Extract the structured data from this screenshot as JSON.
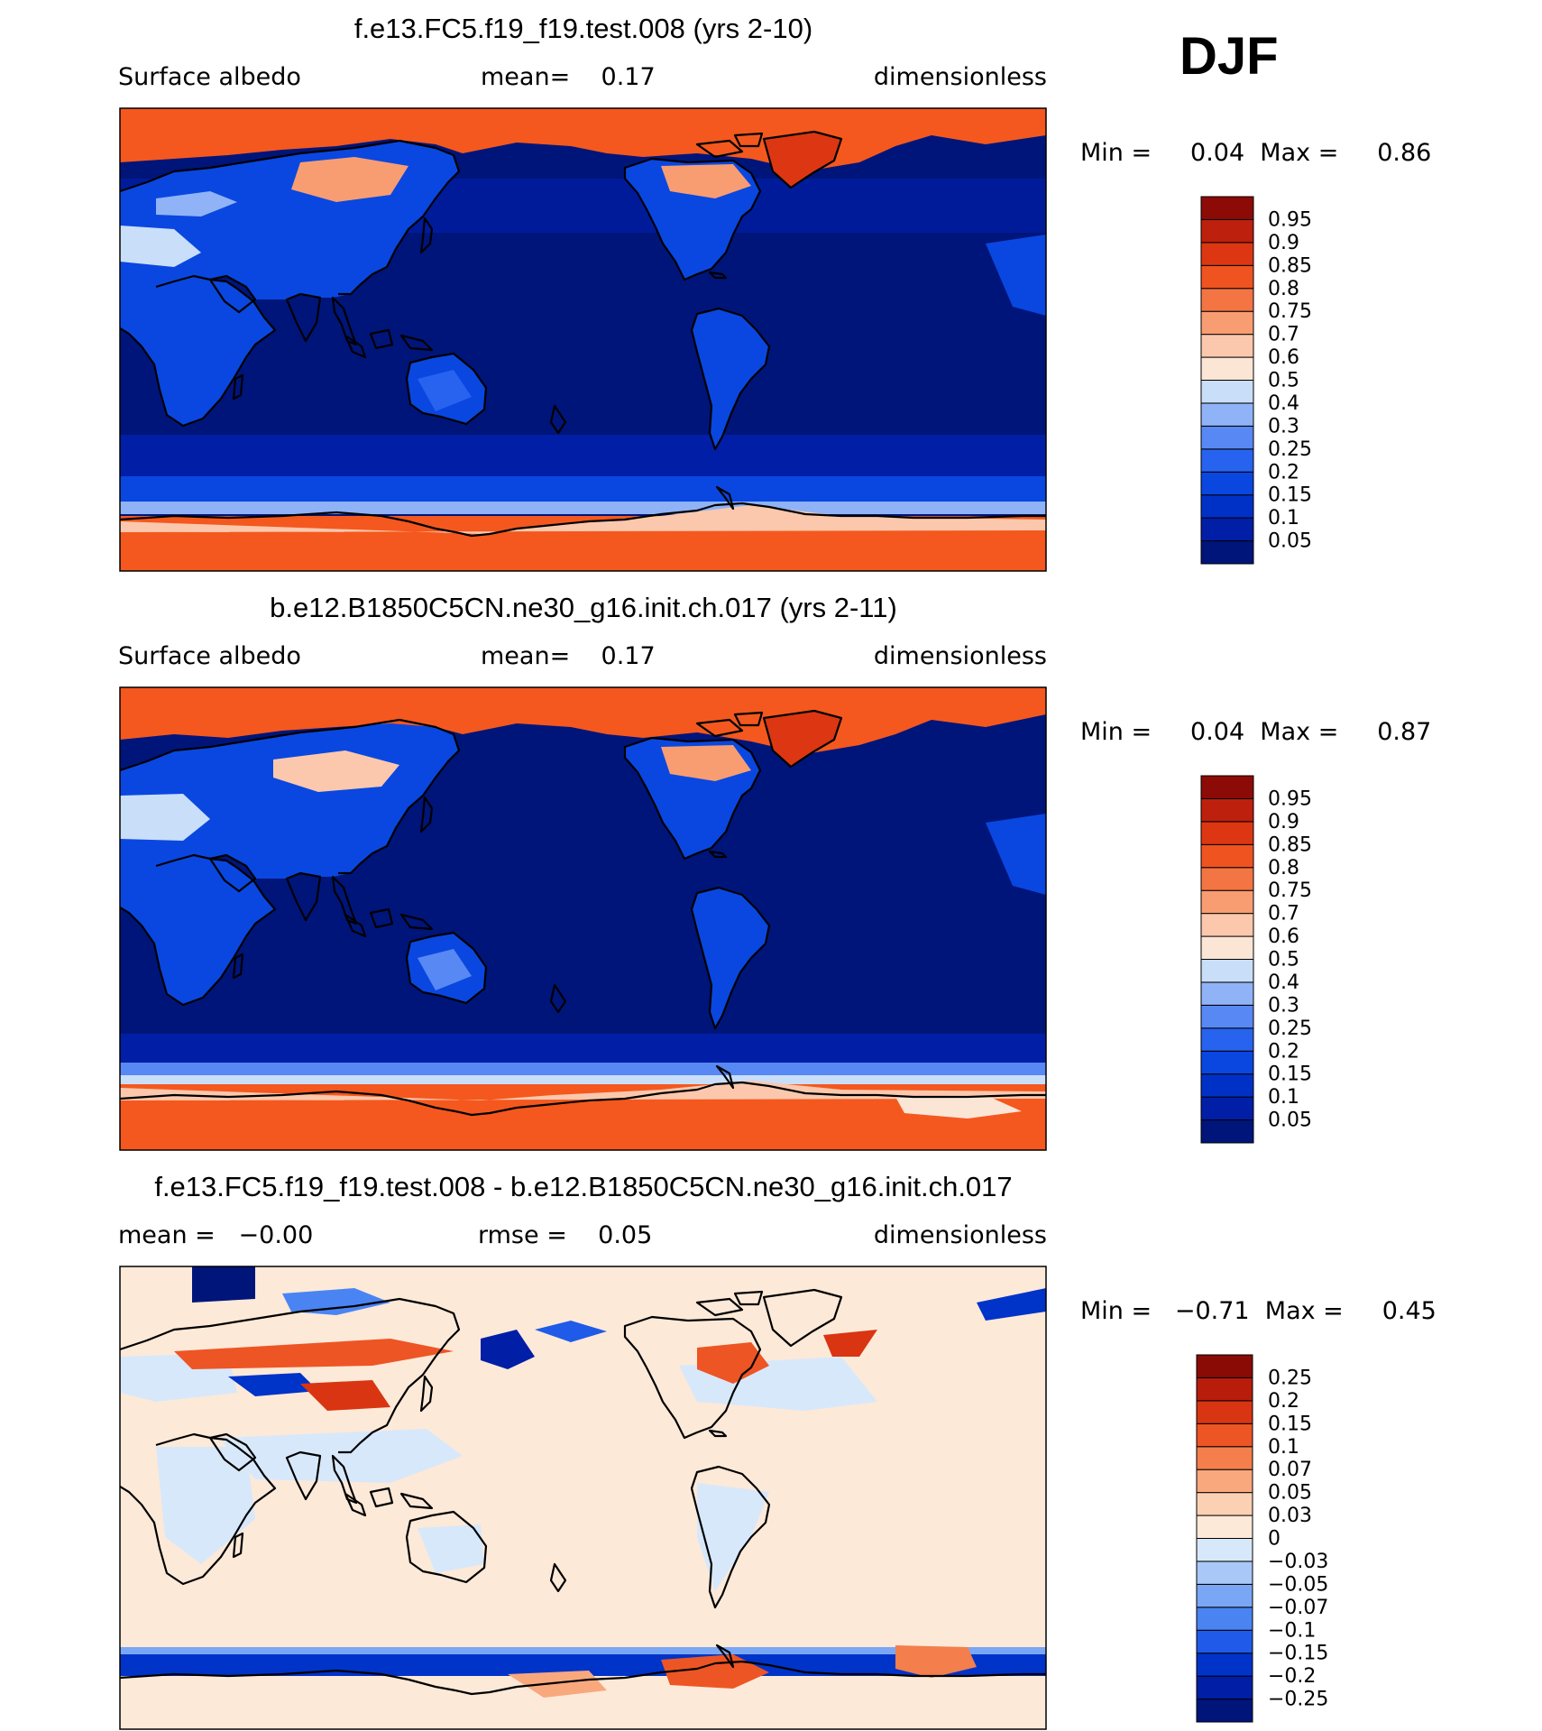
{
  "season": "DJF",
  "colors": {
    "abs_scale": [
      "#00157a",
      "#001ea6",
      "#0031c6",
      "#0a47e0",
      "#2863f0",
      "#5888f3",
      "#8fb3f6",
      "#c9def9",
      "#fbe6d6",
      "#fbc8ad",
      "#f89d72",
      "#f47544",
      "#ef5420",
      "#dc3712",
      "#bd200d",
      "#8c0b07"
    ],
    "diff_scale": [
      "#00157a",
      "#001ea6",
      "#0033c8",
      "#1f5be8",
      "#4a84f2",
      "#79a7f5",
      "#a9c8f8",
      "#d8e8fb",
      "#fde9d8",
      "#fcd0b3",
      "#f9a87e",
      "#f47e4c",
      "#ee5524",
      "#d93512",
      "#b81d0c",
      "#8a0a06"
    ],
    "ocean_abs": "#00157a",
    "land_abs": "#0a47e0",
    "ice_abs": "#f4581e",
    "diff_bg": "#fde9d8"
  },
  "panels": [
    {
      "title": "f.e13.FC5.f19_f19.test.008 (yrs 2-10)",
      "left_label": "Surface albedo",
      "center_label": "mean=    0.17",
      "right_label": "dimensionless",
      "min_max": "Min =     0.04  Max =     0.86",
      "colorbar_labels": [
        "0.05",
        "0.1",
        "0.15",
        "0.2",
        "0.25",
        "0.3",
        "0.4",
        "0.5",
        "0.6",
        "0.7",
        "0.75",
        "0.8",
        "0.85",
        "0.9",
        "0.95"
      ]
    },
    {
      "title": "b.e12.B1850C5CN.ne30_g16.init.ch.017 (yrs 2-11)",
      "left_label": "Surface albedo",
      "center_label": "mean=    0.17",
      "right_label": "dimensionless",
      "min_max": "Min =     0.04  Max =     0.87",
      "colorbar_labels": [
        "0.05",
        "0.1",
        "0.15",
        "0.2",
        "0.25",
        "0.3",
        "0.4",
        "0.5",
        "0.6",
        "0.7",
        "0.75",
        "0.8",
        "0.85",
        "0.9",
        "0.95"
      ]
    },
    {
      "title": "f.e13.FC5.f19_f19.test.008 - b.e12.B1850C5CN.ne30_g16.init.ch.017",
      "left_label": "mean =   −0.00",
      "center_label": "rmse =    0.05",
      "right_label": "dimensionless",
      "min_max": "Min =   −0.71  Max =     0.45",
      "colorbar_labels": [
        "−0.25",
        "−0.2",
        "−0.15",
        "−0.1",
        "−0.07",
        "−0.05",
        "−0.03",
        "0",
        "0.03",
        "0.05",
        "0.07",
        "0.1",
        "0.15",
        "0.2",
        "0.25"
      ]
    }
  ],
  "chart_data": {
    "type": "heatmap",
    "projection": "cylindrical equidistant, centered on 180°",
    "variable": "Surface albedo",
    "units": "dimensionless",
    "season": "DJF",
    "panels": [
      {
        "case": "f.e13.FC5.f19_f19.test.008 (yrs 2-10)",
        "mean": 0.17,
        "min": 0.04,
        "max": 0.86,
        "contour_levels": [
          0.05,
          0.1,
          0.15,
          0.2,
          0.25,
          0.3,
          0.4,
          0.5,
          0.6,
          0.7,
          0.75,
          0.8,
          0.85,
          0.9,
          0.95
        ]
      },
      {
        "case": "b.e12.B1850C5CN.ne30_g16.init.ch.017 (yrs 2-11)",
        "mean": 0.17,
        "min": 0.04,
        "max": 0.87,
        "contour_levels": [
          0.05,
          0.1,
          0.15,
          0.2,
          0.25,
          0.3,
          0.4,
          0.5,
          0.6,
          0.7,
          0.75,
          0.8,
          0.85,
          0.9,
          0.95
        ]
      },
      {
        "case": "f.e13.FC5.f19_f19.test.008 - b.e12.B1850C5CN.ne30_g16.init.ch.017",
        "mean": -0.0,
        "rmse": 0.05,
        "min": -0.71,
        "max": 0.45,
        "contour_levels": [
          -0.25,
          -0.2,
          -0.15,
          -0.1,
          -0.07,
          -0.05,
          -0.03,
          0,
          0.03,
          0.05,
          0.07,
          0.1,
          0.15,
          0.2,
          0.25
        ]
      }
    ]
  }
}
